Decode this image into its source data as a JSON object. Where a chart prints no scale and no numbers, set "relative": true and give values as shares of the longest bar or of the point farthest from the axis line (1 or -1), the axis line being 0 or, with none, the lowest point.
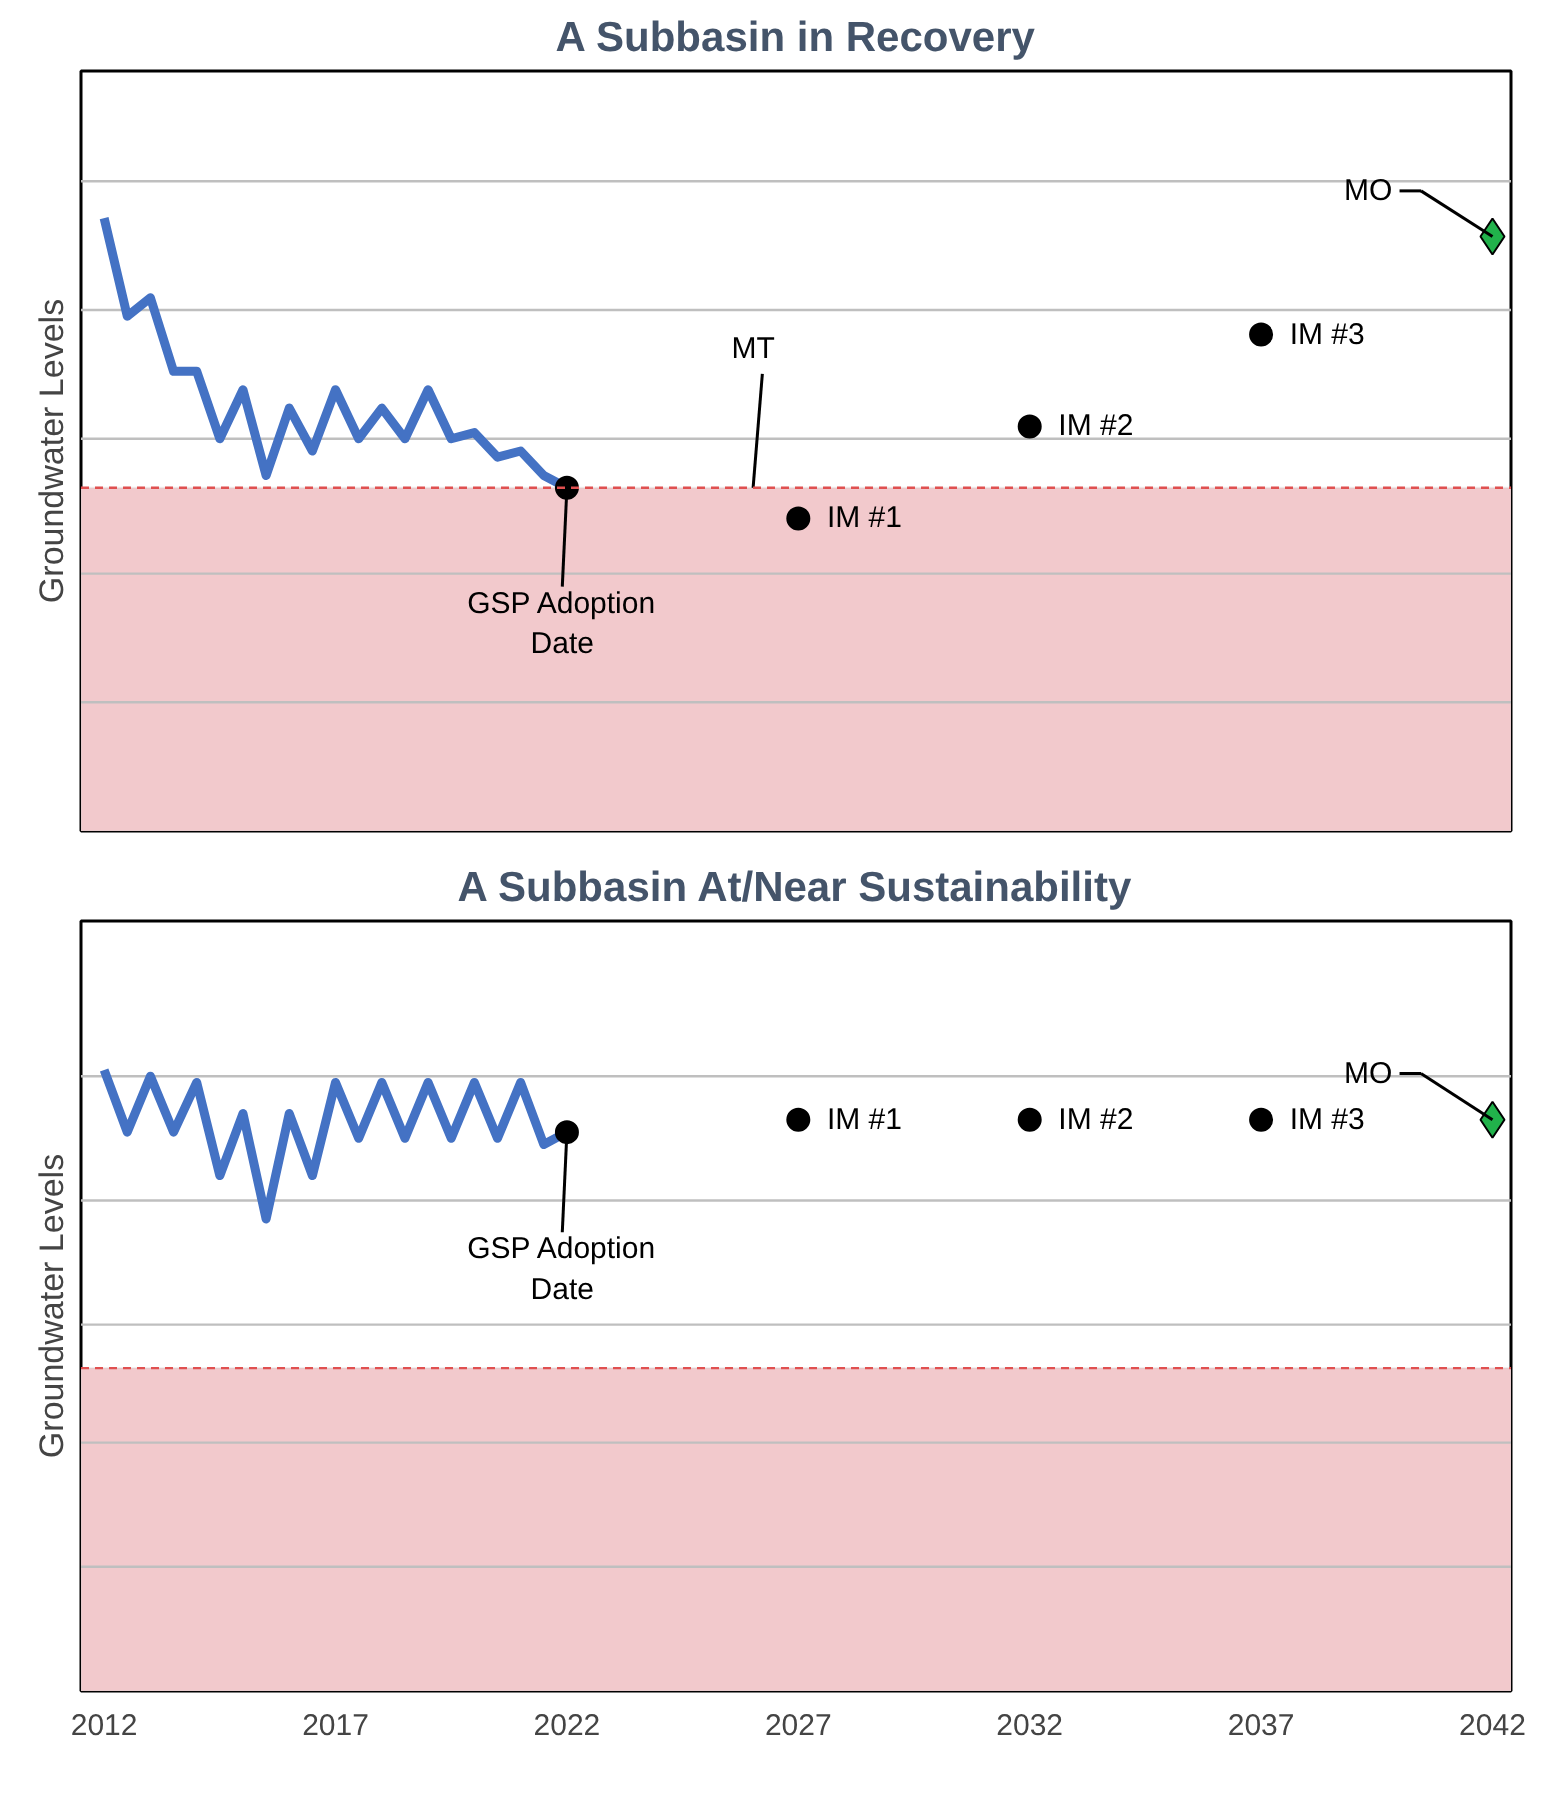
{
  "chart_data": [
    {
      "type": "line",
      "title": "A Subbasin in Recovery",
      "ylabel": "Groundwater Levels",
      "relative": true,
      "xlim": [
        2011.5,
        2042.4
      ],
      "xticks": [
        2012,
        2017,
        2022,
        2027,
        2032,
        2037,
        2042
      ],
      "tick_labels": false,
      "series": [
        {
          "color": "#4472c4",
          "marker": "none",
          "line_style": "solid",
          "x": [
            2012,
            2012.5,
            2013,
            2013.5,
            2014,
            2014.5,
            2015,
            2015.5,
            2016,
            2016.5,
            2017,
            2017.5,
            2018,
            2018.5,
            2019,
            2019.5,
            2020,
            2020.5,
            2021,
            2021.5,
            2022
          ],
          "values": [
            1.0,
            0.84,
            0.87,
            0.75,
            0.75,
            0.64,
            0.72,
            0.58,
            0.69,
            0.62,
            0.72,
            0.64,
            0.69,
            0.64,
            0.72,
            0.64,
            0.65,
            0.61,
            0.62,
            0.58,
            0.56
          ]
        },
        {
          "type": "scatter",
          "color": "#000000",
          "marker": "circle",
          "x": [
            2022,
            2027,
            2032,
            2037
          ],
          "values": [
            0.56,
            0.51,
            0.66,
            0.81
          ]
        },
        {
          "type": "scatter",
          "color": "#21b24b",
          "marker": "diamond",
          "x": [
            2042
          ],
          "values": [
            0.97
          ]
        }
      ],
      "ref_lines": [
        {
          "axis": "y",
          "value": 0.56,
          "label": "MT",
          "color": "#e05050",
          "line_style": "dashed"
        },
        {
          "axis": "y",
          "value": 0.21,
          "color": "#bfbfbf",
          "line_style": "solid"
        },
        {
          "axis": "y",
          "value": 0.42,
          "color": "#bfbfbf",
          "line_style": "solid"
        },
        {
          "axis": "y",
          "value": 0.64,
          "color": "#bfbfbf",
          "line_style": "solid"
        },
        {
          "axis": "y",
          "value": 0.85,
          "color": "#bfbfbf",
          "line_style": "solid"
        },
        {
          "axis": "y",
          "value": 1.06,
          "color": "#bfbfbf",
          "line_style": "solid"
        }
      ],
      "bands": [
        {
          "axis": "y",
          "from": 0,
          "to": 0.56,
          "color": "#f2c9cc"
        }
      ],
      "annotations": [
        {
          "text": "GSP Adoption\nDate",
          "x": 2022,
          "y": 0.56
        },
        {
          "text": "IM #1",
          "x": 2027,
          "y": 0.51
        },
        {
          "text": "IM #2",
          "x": 2032,
          "y": 0.66
        },
        {
          "text": "IM #3",
          "x": 2037,
          "y": 0.81
        },
        {
          "text": "MO",
          "x": 2042,
          "y": 0.97
        }
      ]
    },
    {
      "type": "line",
      "title": "A Subbasin At/Near Sustainability",
      "ylabel": "Groundwater Levels",
      "relative": true,
      "xlim": [
        2011.5,
        2042.4
      ],
      "xticks": [
        2012,
        2017,
        2022,
        2027,
        2032,
        2037,
        2042
      ],
      "tick_labels": "x",
      "series": [
        {
          "color": "#4472c4",
          "marker": "none",
          "line_style": "solid",
          "x": [
            2012,
            2012.5,
            2013,
            2013.5,
            2014,
            2014.5,
            2015,
            2015.5,
            2016,
            2016.5,
            2017,
            2017.5,
            2018,
            2018.5,
            2019,
            2019.5,
            2020,
            2020.5,
            2021,
            2021.5,
            2022
          ],
          "values": [
            1.0,
            0.9,
            0.99,
            0.9,
            0.98,
            0.83,
            0.93,
            0.76,
            0.93,
            0.83,
            0.98,
            0.89,
            0.98,
            0.89,
            0.98,
            0.89,
            0.98,
            0.89,
            0.98,
            0.88,
            0.9
          ]
        },
        {
          "type": "scatter",
          "color": "#000000",
          "marker": "circle",
          "x": [
            2022,
            2027,
            2032,
            2037
          ],
          "values": [
            0.9,
            0.92,
            0.92,
            0.92
          ]
        },
        {
          "type": "scatter",
          "color": "#21b24b",
          "marker": "diamond",
          "x": [
            2042
          ],
          "values": [
            0.92
          ]
        }
      ],
      "ref_lines": [
        {
          "axis": "y",
          "value": 0.52,
          "color": "#e05050",
          "line_style": "dashed"
        },
        {
          "axis": "y",
          "value": 0.2,
          "color": "#bfbfbf",
          "line_style": "solid"
        },
        {
          "axis": "y",
          "value": 0.4,
          "color": "#bfbfbf",
          "line_style": "solid"
        },
        {
          "axis": "y",
          "value": 0.59,
          "color": "#bfbfbf",
          "line_style": "solid"
        },
        {
          "axis": "y",
          "value": 0.79,
          "color": "#bfbfbf",
          "line_style": "solid"
        },
        {
          "axis": "y",
          "value": 0.99,
          "color": "#bfbfbf",
          "line_style": "solid"
        }
      ],
      "bands": [
        {
          "axis": "y",
          "from": 0,
          "to": 0.52,
          "color": "#f2c9cc"
        }
      ],
      "annotations": [
        {
          "text": "GSP Adoption\nDate",
          "x": 2022,
          "y": 0.9
        },
        {
          "text": "IM #1",
          "x": 2027,
          "y": 0.92
        },
        {
          "text": "IM #2",
          "x": 2032,
          "y": 0.92
        },
        {
          "text": "IM #3",
          "x": 2037,
          "y": 0.92
        },
        {
          "text": "MO",
          "x": 2042,
          "y": 0.92
        }
      ]
    }
  ]
}
